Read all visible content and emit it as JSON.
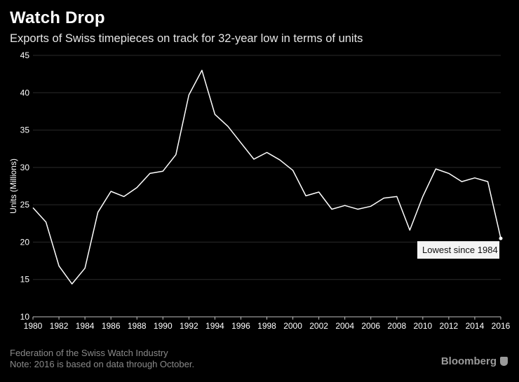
{
  "header": {
    "title": "Watch Drop",
    "subtitle": "Exports of Swiss timepieces on track for 32-year low in terms of units"
  },
  "footer": {
    "source": "Federation of the Swiss Watch Industry",
    "note": "Note: 2016 is based on data through October.",
    "brand": "Bloomberg"
  },
  "colors": {
    "background": "#000000",
    "line": "#ffffff",
    "grid": "#2a2a2a"
  },
  "chart_data": {
    "type": "line",
    "ylabel": "Units (Millions)",
    "xlabel": "",
    "xlim": [
      1980,
      2016
    ],
    "ylim": [
      10,
      45
    ],
    "xticks": [
      1980,
      1982,
      1984,
      1986,
      1988,
      1990,
      1992,
      1994,
      1996,
      1998,
      2000,
      2002,
      2004,
      2006,
      2008,
      2010,
      2012,
      2014,
      2016
    ],
    "yticks": [
      10,
      15,
      20,
      25,
      30,
      35,
      40,
      45
    ],
    "grid": true,
    "series": [
      {
        "x": [
          1980,
          1981,
          1982,
          1983,
          1984,
          1985,
          1986,
          1987,
          1988,
          1989,
          1990,
          1991,
          1992,
          1993,
          1994,
          1995,
          1996,
          1997,
          1998,
          1999,
          2000,
          2001,
          2002,
          2003,
          2004,
          2005,
          2006,
          2007,
          2008,
          2009,
          2010,
          2011,
          2012,
          2013,
          2014,
          2015,
          2016
        ],
        "values": [
          24.6,
          22.7,
          16.8,
          14.4,
          16.5,
          24.0,
          26.8,
          26.1,
          27.3,
          29.2,
          29.5,
          31.7,
          39.7,
          43.0,
          37.1,
          35.5,
          33.3,
          31.1,
          32.0,
          31.0,
          29.6,
          26.2,
          26.7,
          24.4,
          24.9,
          24.4,
          24.8,
          25.9,
          26.1,
          21.6,
          26.1,
          29.8,
          29.2,
          28.1,
          28.6,
          28.1,
          20.5
        ]
      }
    ],
    "annotation": {
      "text": "Lowest since 1984",
      "x": 2016,
      "y": 20.5
    }
  }
}
